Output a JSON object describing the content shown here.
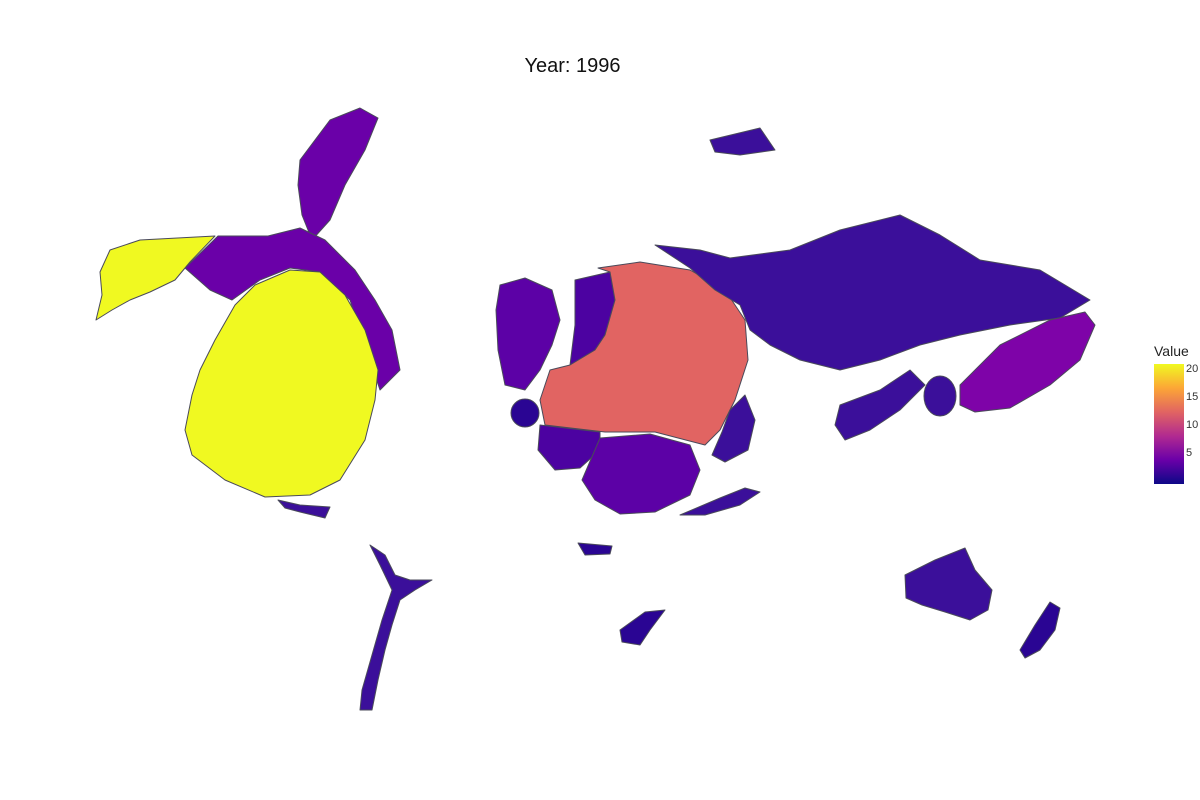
{
  "title": "Year: 1996",
  "legend": {
    "title": "Value",
    "ticks": [
      "20",
      "15",
      "10",
      "5"
    ],
    "colors": [
      "#0d0887",
      "#6a00a8",
      "#b12a90",
      "#e16462",
      "#fca636",
      "#f0f921"
    ]
  },
  "regions": {
    "north_america": "#f0f921",
    "canada": "#6a00a8",
    "greenland": "#6a00a8",
    "central_america": "#3b0f9a",
    "south_america": "#3b0f9a",
    "europe": "#e16462",
    "scandinavia": "#4c02a1",
    "uk": "#5c01a6",
    "iberia": "#2a0593",
    "north_africa": "#4c02a1",
    "central_africa": "#5c01a6",
    "south_africa": "#2a0593",
    "middle_east": "#3b0f9a",
    "russia": "#3b0f9a",
    "japan": "#7e03a8",
    "asia": "#3b0f9a",
    "australia": "#3b0f9a",
    "new_zealand": "#2a0593"
  }
}
